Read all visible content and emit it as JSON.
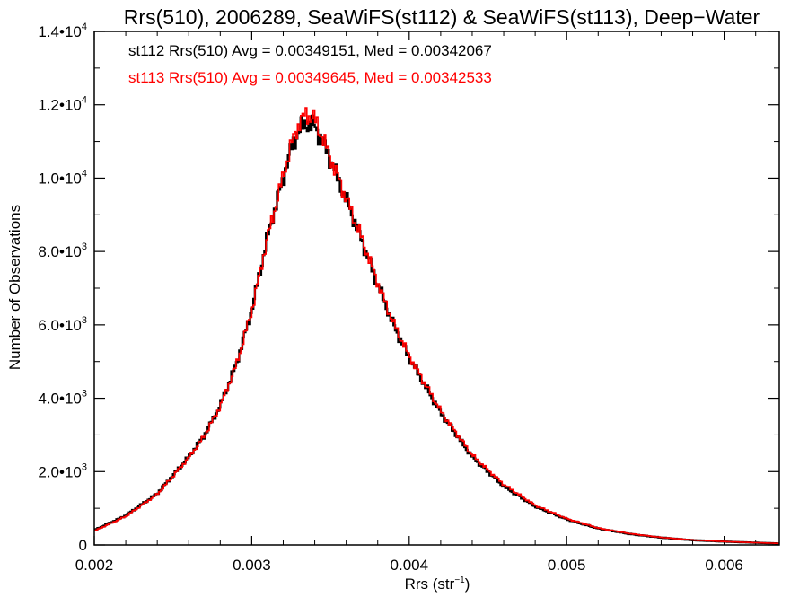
{
  "chart_data": {
    "type": "histogram",
    "title": "Rrs(510), 2006289, SeaWiFS(st112) & SeaWiFS(st113), Deep−Water",
    "xlabel": "Rrs (str",
    "xlabel_sup": "−1",
    "xlabel_end": ")",
    "ylabel": "Number of Observations",
    "xlim": [
      0.002,
      0.00635
    ],
    "ylim": [
      0,
      14000
    ],
    "grid": false,
    "x_ticks": [
      {
        "value": 0.002,
        "label": "0.002"
      },
      {
        "value": 0.003,
        "label": "0.003"
      },
      {
        "value": 0.004,
        "label": "0.004"
      },
      {
        "value": 0.005,
        "label": "0.005"
      },
      {
        "value": 0.006,
        "label": "0.006"
      }
    ],
    "y_ticks": [
      {
        "value": 0,
        "base": "0",
        "exp": ""
      },
      {
        "value": 2000,
        "base": "2.0•10",
        "exp": "3"
      },
      {
        "value": 4000,
        "base": "4.0•10",
        "exp": "3"
      },
      {
        "value": 6000,
        "base": "6.0•10",
        "exp": "3"
      },
      {
        "value": 8000,
        "base": "8.0•10",
        "exp": "3"
      },
      {
        "value": 10000,
        "base": "1.0•10",
        "exp": "4"
      },
      {
        "value": 12000,
        "base": "1.2•10",
        "exp": "4"
      },
      {
        "value": 14000,
        "base": "1.4•10",
        "exp": "4"
      }
    ],
    "annotations": [
      {
        "text": "st112 Rrs(510) Avg = 0.00349151, Med = 0.00342067",
        "color": "#000000"
      },
      {
        "text": "st113 Rrs(510) Avg = 0.00349645, Med = 0.00342533",
        "color": "#ff0000"
      }
    ],
    "series": [
      {
        "name": "st112",
        "color": "#000000",
        "x": [
          0.002,
          0.0022,
          0.0024,
          0.0026,
          0.0027,
          0.0028,
          0.0029,
          0.003,
          0.0031,
          0.0032,
          0.00325,
          0.0033,
          0.00335,
          0.0034,
          0.00345,
          0.0035,
          0.0036,
          0.0037,
          0.0038,
          0.0039,
          0.004,
          0.0042,
          0.0044,
          0.0046,
          0.0048,
          0.005,
          0.0052,
          0.0054,
          0.0056,
          0.0058,
          0.006,
          0.0062,
          0.00635
        ],
        "y": [
          400,
          800,
          1400,
          2400,
          3000,
          3800,
          4900,
          6400,
          8400,
          10000,
          10800,
          11300,
          11500,
          11400,
          11000,
          10500,
          9400,
          8300,
          7100,
          6000,
          5100,
          3600,
          2400,
          1600,
          1050,
          700,
          450,
          300,
          200,
          130,
          90,
          60,
          40
        ]
      },
      {
        "name": "st113",
        "color": "#ff0000",
        "x": [
          0.002,
          0.0022,
          0.0024,
          0.0026,
          0.0027,
          0.0028,
          0.0029,
          0.003,
          0.0031,
          0.0032,
          0.00325,
          0.0033,
          0.00335,
          0.0034,
          0.00345,
          0.0035,
          0.0036,
          0.0037,
          0.0038,
          0.0039,
          0.004,
          0.0042,
          0.0044,
          0.0046,
          0.0048,
          0.005,
          0.0052,
          0.0054,
          0.0056,
          0.0058,
          0.006,
          0.0062,
          0.00635
        ],
        "y": [
          380,
          780,
          1380,
          2380,
          2980,
          3780,
          4880,
          6380,
          8380,
          10050,
          10900,
          11500,
          11750,
          11600,
          11100,
          10550,
          9450,
          8350,
          7150,
          6050,
          5150,
          3650,
          2450,
          1650,
          1080,
          720,
          460,
          310,
          205,
          135,
          92,
          62,
          42
        ]
      }
    ]
  }
}
